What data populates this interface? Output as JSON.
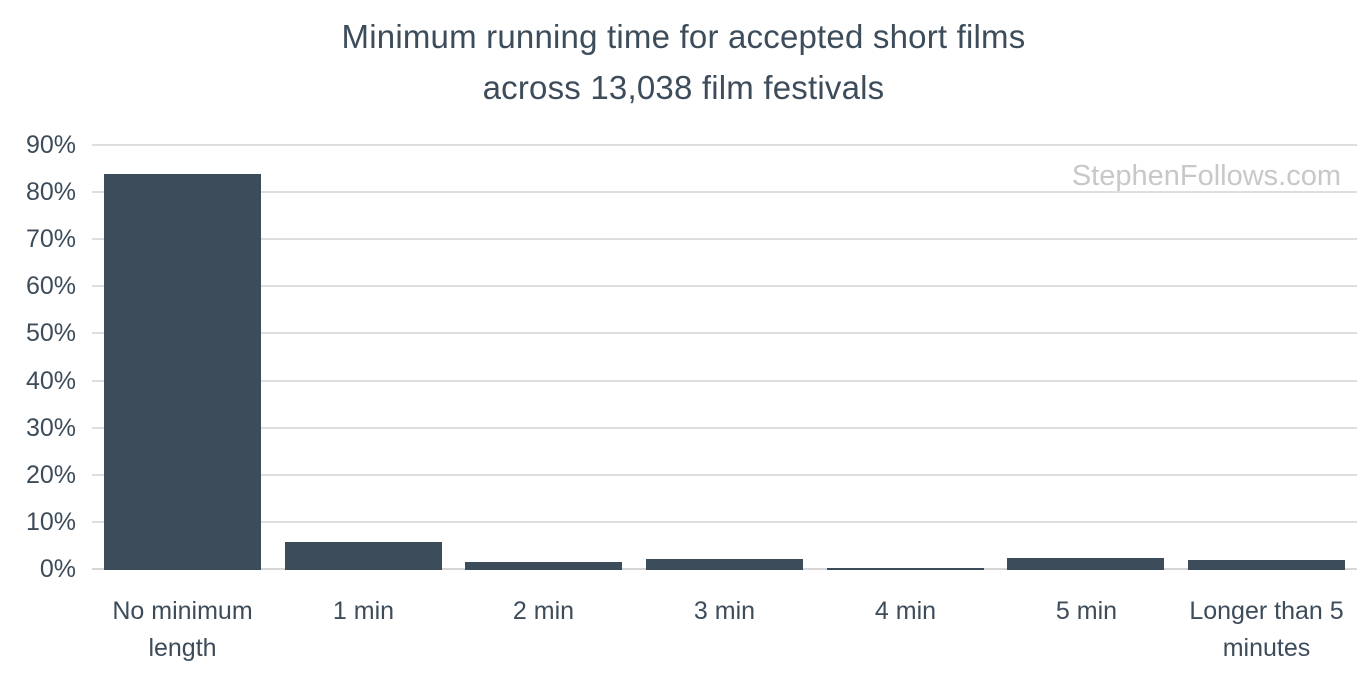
{
  "title": {
    "line1": "Minimum running time for accepted short films",
    "line2": "across 13,038 film festivals"
  },
  "watermark": "StephenFollows.com",
  "colors": {
    "bar": "#3D4C5A",
    "text": "#3D4C5A",
    "grid": "#DEDEDE",
    "baseline": "#D6D6D6",
    "watermark": "#C8C8C8",
    "background": "#FFFFFF"
  },
  "chart_data": {
    "type": "bar",
    "title": "Minimum running time for accepted short films across 13,038 film festivals",
    "categories": [
      "No minimum length",
      "1 min",
      "2 min",
      "3 min",
      "4 min",
      "5 min",
      "Longer than 5 minutes"
    ],
    "values": [
      84,
      6,
      1.8,
      2.3,
      0.4,
      2.6,
      2.1
    ],
    "unit": "%",
    "xlabel": "",
    "ylabel": "",
    "ylim": [
      0,
      90
    ],
    "ytick_step": 10,
    "ytick_labels": [
      "0%",
      "10%",
      "20%",
      "30%",
      "40%",
      "50%",
      "60%",
      "70%",
      "80%",
      "90%"
    ],
    "grid": "horizontal",
    "legend": "none",
    "bar_color": "#3D4C5A"
  }
}
